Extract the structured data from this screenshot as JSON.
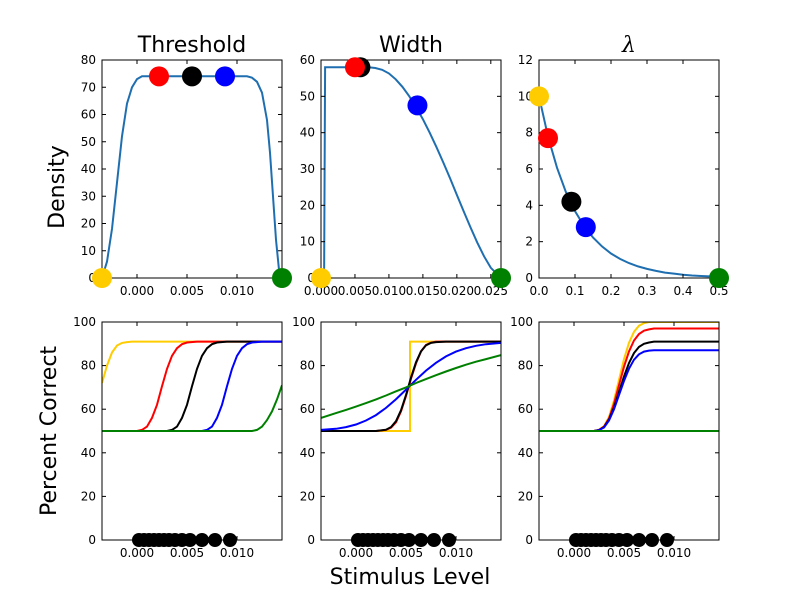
{
  "figure": {
    "ylabel_top": "Density",
    "ylabel_bottom": "Percent Correct",
    "xlabel_bottom": "Stimulus Level"
  },
  "colors": {
    "curve": "#1f6fb0",
    "yellow": "#ffcc00",
    "red": "#ff0000",
    "black": "#000000",
    "blue": "#0000ff",
    "green": "#008000"
  },
  "chart_data": [
    {
      "type": "line",
      "panel": "top-left",
      "title": "Threshold",
      "ylabel": "Density",
      "xlim": [
        -0.0035,
        0.0145
      ],
      "ylim": [
        0,
        80
      ],
      "xticks": [
        0.0,
        0.005,
        0.01
      ],
      "xtick_labels": [
        "0.000",
        "0.005",
        "0.010"
      ],
      "yticks": [
        0,
        10,
        20,
        30,
        40,
        50,
        60,
        70,
        80
      ],
      "ytick_labels": [
        "0",
        "10",
        "20",
        "30",
        "40",
        "50",
        "60",
        "70",
        "80"
      ],
      "series": [
        {
          "color": "curve",
          "x": [
            -0.0035,
            -0.003,
            -0.0025,
            -0.002,
            -0.0015,
            -0.001,
            -0.0005,
            0.0,
            0.0005,
            0.001,
            0.002,
            0.004,
            0.006,
            0.008,
            0.01,
            0.011,
            0.0115,
            0.012,
            0.0125,
            0.013,
            0.0133,
            0.0136,
            0.0139,
            0.0142,
            0.0145
          ],
          "y": [
            0,
            6,
            18,
            35,
            52,
            64,
            70,
            73,
            74,
            74,
            74,
            74,
            74,
            74,
            74,
            74,
            73.5,
            72,
            68,
            58,
            46,
            30,
            14,
            3,
            0
          ]
        }
      ],
      "markers": [
        {
          "color": "yellow",
          "x": -0.0035,
          "y": 0
        },
        {
          "color": "red",
          "x": 0.0022,
          "y": 74
        },
        {
          "color": "black",
          "x": 0.0055,
          "y": 74
        },
        {
          "color": "blue",
          "x": 0.0088,
          "y": 74
        },
        {
          "color": "green",
          "x": 0.0145,
          "y": 0
        }
      ]
    },
    {
      "type": "line",
      "panel": "top-middle",
      "title": "Width",
      "xlim": [
        0,
        0.0265
      ],
      "ylim": [
        0,
        60
      ],
      "xticks": [
        0.0,
        0.005,
        0.01,
        0.015,
        0.02,
        0.025
      ],
      "xtick_labels": [
        "0.000",
        "0.005",
        "0.010",
        "0.015",
        "0.020",
        "0.025"
      ],
      "yticks": [
        0,
        10,
        20,
        30,
        40,
        50,
        60
      ],
      "ytick_labels": [
        "0",
        "10",
        "20",
        "30",
        "40",
        "50",
        "60"
      ],
      "series": [
        {
          "color": "curve",
          "x": [
            0.0,
            0.00045,
            0.0006,
            0.001,
            0.005,
            0.006,
            0.007,
            0.008,
            0.009,
            0.01,
            0.011,
            0.012,
            0.013,
            0.014,
            0.015,
            0.016,
            0.017,
            0.018,
            0.019,
            0.02,
            0.021,
            0.022,
            0.023,
            0.024,
            0.025,
            0.0265
          ],
          "y": [
            0,
            0,
            58,
            58,
            58,
            58,
            58,
            57.8,
            57.3,
            56.3,
            54.7,
            52.6,
            50,
            47,
            43.7,
            40,
            36,
            31.8,
            27.4,
            22.9,
            18.4,
            14,
            9.8,
            6,
            2.8,
            0
          ]
        }
      ],
      "markers": [
        {
          "color": "yellow",
          "x": 0.0,
          "y": 0
        },
        {
          "color": "black",
          "x": 0.0058,
          "y": 58
        },
        {
          "color": "red",
          "x": 0.005,
          "y": 58
        },
        {
          "color": "blue",
          "x": 0.0142,
          "y": 47.5
        },
        {
          "color": "green",
          "x": 0.0265,
          "y": 0
        }
      ]
    },
    {
      "type": "line",
      "panel": "top-right",
      "title": "λ",
      "xlim": [
        0,
        0.5
      ],
      "ylim": [
        0,
        12
      ],
      "xticks": [
        0.0,
        0.1,
        0.2,
        0.3,
        0.4,
        0.5
      ],
      "xtick_labels": [
        "0.0",
        "0.1",
        "0.2",
        "0.3",
        "0.4",
        "0.5"
      ],
      "yticks": [
        0,
        2,
        4,
        6,
        8,
        10,
        12
      ],
      "ytick_labels": [
        "0",
        "2",
        "4",
        "6",
        "8",
        "10",
        "12"
      ],
      "series": [
        {
          "color": "curve",
          "x": [
            0.0,
            0.025,
            0.05,
            0.075,
            0.1,
            0.125,
            0.15,
            0.175,
            0.2,
            0.225,
            0.25,
            0.275,
            0.3,
            0.325,
            0.35,
            0.375,
            0.4,
            0.425,
            0.45,
            0.475,
            0.5
          ],
          "y": [
            10.0,
            7.79,
            6.07,
            4.72,
            3.68,
            2.87,
            2.23,
            1.74,
            1.35,
            1.05,
            0.82,
            0.64,
            0.5,
            0.39,
            0.3,
            0.24,
            0.18,
            0.14,
            0.11,
            0.09,
            0.07
          ]
        }
      ],
      "markers": [
        {
          "color": "yellow",
          "x": 0.0,
          "y": 10
        },
        {
          "color": "red",
          "x": 0.025,
          "y": 7.7
        },
        {
          "color": "black",
          "x": 0.09,
          "y": 4.2
        },
        {
          "color": "blue",
          "x": 0.13,
          "y": 2.8
        },
        {
          "color": "green",
          "x": 0.5,
          "y": 0
        }
      ]
    },
    {
      "type": "line",
      "panel": "bottom-left",
      "ylabel": "Percent Correct",
      "xlim": [
        -0.0035,
        0.0145
      ],
      "ylim": [
        0,
        100
      ],
      "xticks": [
        0.0,
        0.005,
        0.01
      ],
      "xtick_labels": [
        "0.000",
        "0.005",
        "0.010"
      ],
      "yticks": [
        0,
        20,
        40,
        60,
        80,
        100
      ],
      "ytick_labels": [
        "0",
        "20",
        "40",
        "60",
        "80",
        "100"
      ],
      "series": [
        {
          "color": "yellow",
          "x": [
            -0.0035,
            -0.003,
            -0.0025,
            -0.002,
            -0.0015,
            -0.001,
            -0.0005,
            0.0,
            0.002,
            0.0145
          ],
          "y": [
            72,
            80,
            86,
            89.2,
            90.4,
            90.8,
            91,
            91,
            91,
            91
          ]
        },
        {
          "color": "red",
          "x": [
            -0.0035,
            0.0,
            0.0005,
            0.001,
            0.0015,
            0.002,
            0.0025,
            0.003,
            0.0035,
            0.004,
            0.0045,
            0.005,
            0.006,
            0.0145
          ],
          "y": [
            50,
            50,
            50.5,
            52,
            56,
            62,
            70.5,
            78.5,
            84.5,
            88,
            89.8,
            90.6,
            91,
            91
          ]
        },
        {
          "color": "black",
          "x": [
            -0.0035,
            0.003,
            0.0035,
            0.004,
            0.0045,
            0.005,
            0.0055,
            0.006,
            0.0065,
            0.007,
            0.0075,
            0.008,
            0.009,
            0.0145
          ],
          "y": [
            50,
            50,
            50.5,
            52,
            56,
            62,
            70.5,
            78.5,
            84.5,
            88,
            89.8,
            90.6,
            91,
            91
          ]
        },
        {
          "color": "blue",
          "x": [
            -0.0035,
            0.0065,
            0.007,
            0.0075,
            0.008,
            0.0085,
            0.009,
            0.0095,
            0.01,
            0.0105,
            0.011,
            0.0115,
            0.0125,
            0.0145
          ],
          "y": [
            50,
            50,
            50.5,
            52,
            56,
            62,
            70.5,
            78.5,
            84.5,
            88,
            89.8,
            90.6,
            91,
            91
          ]
        },
        {
          "color": "green",
          "x": [
            -0.0035,
            0.0115,
            0.012,
            0.0125,
            0.013,
            0.0135,
            0.014,
            0.0145
          ],
          "y": [
            50,
            50,
            50.5,
            52,
            55,
            59,
            64.5,
            71
          ]
        }
      ],
      "data_points_x": [
        0.0002,
        0.0007,
        0.0012,
        0.0017,
        0.0022,
        0.0027,
        0.0032,
        0.0038,
        0.0045,
        0.0053,
        0.0065,
        0.0078,
        0.0093
      ],
      "data_points_y": [
        0,
        0,
        0,
        0,
        0,
        0,
        0,
        0,
        0,
        0,
        0,
        0,
        0
      ]
    },
    {
      "type": "line",
      "panel": "bottom-middle",
      "xlabel": "Stimulus Level",
      "xlim": [
        -0.0035,
        0.0145
      ],
      "ylim": [
        0,
        100
      ],
      "xticks": [
        0.0,
        0.005,
        0.01
      ],
      "xtick_labels": [
        "0.000",
        "0.005",
        "0.010"
      ],
      "yticks": [
        0,
        20,
        40,
        60,
        80,
        100
      ],
      "ytick_labels": [
        "0",
        "20",
        "40",
        "60",
        "80",
        "100"
      ],
      "series": [
        {
          "color": "yellow",
          "x": [
            -0.0035,
            0.0054,
            0.0054,
            0.0145
          ],
          "y": [
            50,
            50,
            91,
            91
          ]
        },
        {
          "color": "red",
          "x": [
            -0.0035,
            0.002,
            0.003,
            0.0035,
            0.004,
            0.0045,
            0.005,
            0.0055,
            0.006,
            0.0065,
            0.007,
            0.0075,
            0.008,
            0.009,
            0.0145
          ],
          "y": [
            50,
            50,
            50.5,
            51.5,
            54,
            59,
            66,
            74,
            81,
            86.5,
            89.5,
            90.5,
            91,
            91,
            91
          ]
        },
        {
          "color": "black",
          "x": [
            -0.0035,
            0.002,
            0.003,
            0.0035,
            0.004,
            0.0045,
            0.005,
            0.0055,
            0.006,
            0.0065,
            0.007,
            0.0075,
            0.008,
            0.009,
            0.0145
          ],
          "y": [
            50,
            50,
            50.6,
            51.8,
            54.5,
            59.5,
            66.5,
            74.5,
            81.5,
            86.5,
            89.3,
            90.4,
            90.8,
            91,
            91
          ]
        },
        {
          "color": "blue",
          "x": [
            -0.0035,
            -0.002,
            -0.001,
            0.0,
            0.001,
            0.002,
            0.003,
            0.004,
            0.005,
            0.006,
            0.007,
            0.008,
            0.009,
            0.01,
            0.011,
            0.012,
            0.013,
            0.0145
          ],
          "y": [
            50.5,
            51,
            51.8,
            53,
            54.8,
            57.3,
            60.6,
            64.6,
            69,
            73.5,
            77.7,
            81.3,
            84.2,
            86.4,
            88,
            89.1,
            89.8,
            90.4
          ]
        },
        {
          "color": "green",
          "x": [
            -0.0035,
            -0.002,
            -0.001,
            0.0,
            0.001,
            0.002,
            0.003,
            0.004,
            0.005,
            0.006,
            0.007,
            0.008,
            0.009,
            0.01,
            0.011,
            0.012,
            0.013,
            0.0145
          ],
          "y": [
            56,
            58.2,
            59.7,
            61.2,
            62.8,
            64.5,
            66.3,
            68.2,
            70,
            72,
            73.8,
            75.6,
            77.3,
            78.9,
            80.4,
            81.8,
            83,
            84.8
          ]
        }
      ],
      "data_points_x": [
        0.0002,
        0.0007,
        0.0012,
        0.0017,
        0.0022,
        0.0027,
        0.0032,
        0.0038,
        0.0045,
        0.0053,
        0.0065,
        0.0078,
        0.0093
      ],
      "data_points_y": [
        0,
        0,
        0,
        0,
        0,
        0,
        0,
        0,
        0,
        0,
        0,
        0,
        0
      ]
    },
    {
      "type": "line",
      "panel": "bottom-right",
      "xlim": [
        -0.0035,
        0.0145
      ],
      "ylim": [
        0,
        100
      ],
      "xticks": [
        0.0,
        0.005,
        0.01
      ],
      "xtick_labels": [
        "0.000",
        "0.005",
        "0.010"
      ],
      "yticks": [
        0,
        20,
        40,
        60,
        80,
        100
      ],
      "ytick_labels": [
        "0",
        "20",
        "40",
        "60",
        "80",
        "100"
      ],
      "series": [
        {
          "color": "yellow",
          "x": [
            -0.0035,
            0.002,
            0.0025,
            0.003,
            0.0035,
            0.004,
            0.0045,
            0.005,
            0.0055,
            0.006,
            0.0065,
            0.007,
            0.0075,
            0.008,
            0.0145
          ],
          "y": [
            50,
            50,
            50.6,
            52.2,
            56.4,
            64,
            73.5,
            83,
            90.5,
            95.5,
            98.3,
            99.5,
            100,
            100,
            100
          ]
        },
        {
          "color": "red",
          "x": [
            -0.0035,
            0.002,
            0.0025,
            0.003,
            0.0035,
            0.004,
            0.0045,
            0.005,
            0.0055,
            0.006,
            0.0065,
            0.007,
            0.0075,
            0.008,
            0.0145
          ],
          "y": [
            50,
            50,
            50.5,
            52,
            55.8,
            62.5,
            71,
            79.5,
            86.5,
            91.5,
            94.5,
            96,
            96.6,
            97,
            97
          ]
        },
        {
          "color": "black",
          "x": [
            -0.0035,
            0.002,
            0.0025,
            0.003,
            0.0035,
            0.004,
            0.0045,
            0.005,
            0.0055,
            0.006,
            0.0065,
            0.007,
            0.0075,
            0.008,
            0.0145
          ],
          "y": [
            50,
            50,
            50.4,
            51.8,
            55.2,
            60.8,
            67.8,
            75,
            81.2,
            85.8,
            88.6,
            90,
            90.6,
            91,
            91
          ]
        },
        {
          "color": "blue",
          "x": [
            -0.0035,
            0.002,
            0.0025,
            0.003,
            0.0035,
            0.004,
            0.0045,
            0.005,
            0.0055,
            0.006,
            0.0065,
            0.007,
            0.0075,
            0.008,
            0.0145
          ],
          "y": [
            50,
            50,
            50.4,
            51.6,
            54.8,
            60,
            66.5,
            73,
            78.6,
            82.7,
            85.2,
            86.4,
            86.9,
            87,
            87
          ]
        },
        {
          "color": "green",
          "x": [
            -0.0035,
            0.0145
          ],
          "y": [
            50,
            50
          ]
        }
      ],
      "data_points_x": [
        0.0002,
        0.0007,
        0.0012,
        0.0017,
        0.0022,
        0.0027,
        0.0032,
        0.0038,
        0.0045,
        0.0053,
        0.0065,
        0.0078,
        0.0093
      ],
      "data_points_y": [
        0,
        0,
        0,
        0,
        0,
        0,
        0,
        0,
        0,
        0,
        0,
        0,
        0
      ]
    }
  ]
}
